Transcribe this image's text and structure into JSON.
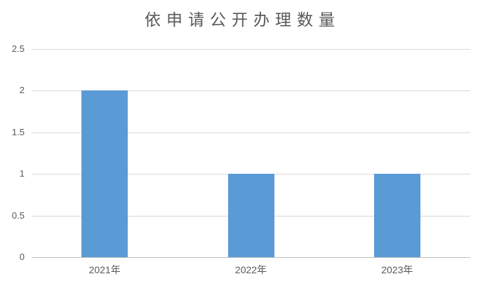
{
  "chart_data": {
    "type": "bar",
    "title": "依申请公开办理数量",
    "categories": [
      "2021年",
      "2022年",
      "2023年"
    ],
    "values": [
      2,
      1,
      1
    ],
    "xlabel": "",
    "ylabel": "",
    "ylim": [
      0,
      2.5
    ],
    "yticks": [
      0,
      0.5,
      1,
      1.5,
      2,
      2.5
    ],
    "grid": true,
    "legend": false,
    "colors": {
      "bar": "#5B9BD5",
      "gridline": "#D9D9D9",
      "axis_line": "#BFBFBF",
      "title_text": "#595959",
      "tick_text": "#595959",
      "background": "#FFFFFF"
    }
  }
}
